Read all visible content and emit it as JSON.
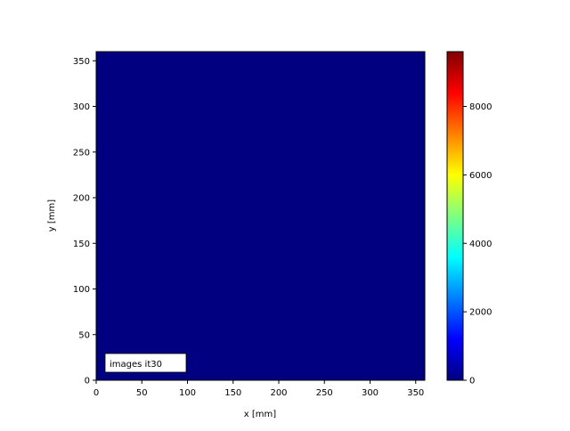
{
  "chart_data": {
    "type": "heatmap",
    "colormap": "jet",
    "xlabel": "x [mm]",
    "ylabel": "y [mm]",
    "xlim": [
      0,
      360
    ],
    "ylim": [
      0,
      360
    ],
    "xticks": [
      0,
      50,
      100,
      150,
      200,
      250,
      300,
      350
    ],
    "yticks": [
      0,
      50,
      100,
      150,
      200,
      250,
      300,
      350
    ],
    "values_uniform": 0,
    "annotation": "images it30",
    "colorbar": {
      "range": [
        0,
        9600
      ],
      "ticks": [
        0,
        2000,
        4000,
        6000,
        8000
      ]
    },
    "colors": {
      "low": "#000080",
      "high": "#800000"
    }
  }
}
